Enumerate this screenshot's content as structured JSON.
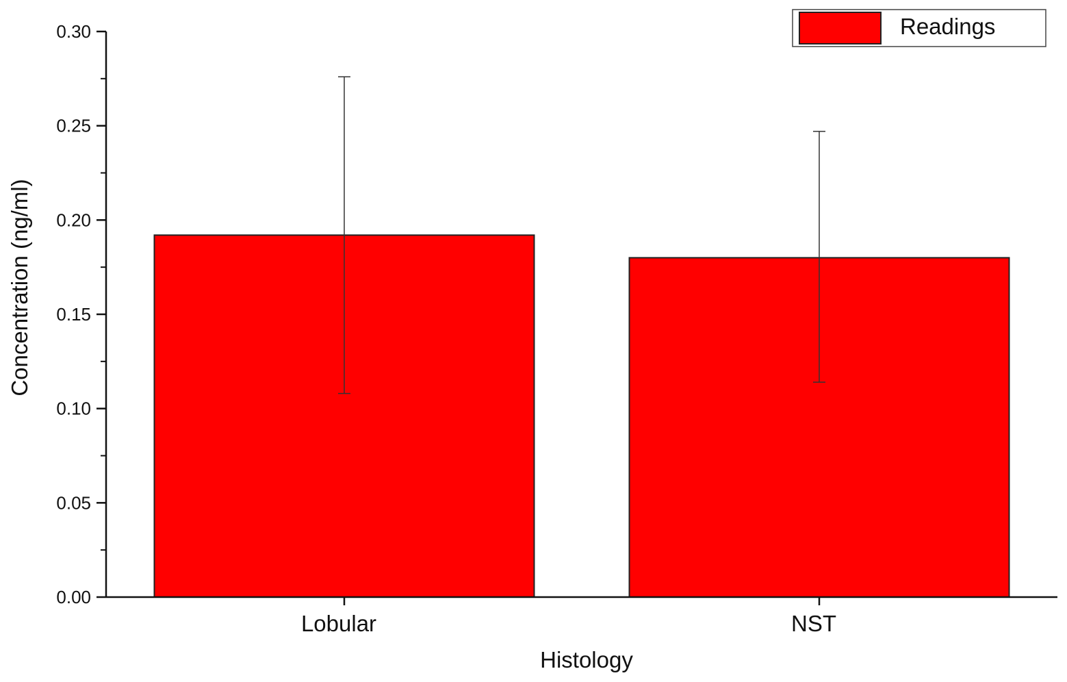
{
  "chart_data": {
    "type": "bar",
    "categories": [
      "Lobular",
      "NST"
    ],
    "series": [
      {
        "name": "Readings",
        "values": [
          0.192,
          0.18
        ],
        "error_low": [
          0.108,
          0.114
        ],
        "error_high": [
          0.276,
          0.247
        ],
        "color": "#ff0000"
      }
    ],
    "xlabel": "Histology",
    "ylabel": "Concentration (ng/ml)",
    "ylim": [
      0,
      0.3
    ],
    "yticks": [
      "0.00",
      "0.05",
      "0.10",
      "0.15",
      "0.20",
      "0.25",
      "0.30"
    ],
    "grid": false,
    "legend_position": "top-right"
  }
}
